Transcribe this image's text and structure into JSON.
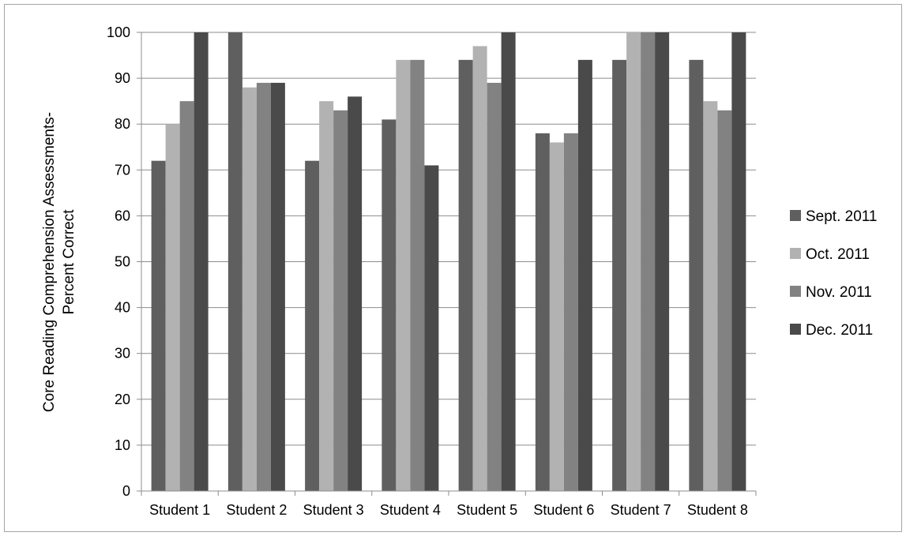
{
  "chart_data": {
    "type": "bar",
    "title": "",
    "xlabel": "",
    "ylabel_lines": [
      "Core Reading Comprehension Assessments-",
      "Percent Correct"
    ],
    "ylim": [
      0,
      100
    ],
    "yticks": [
      0,
      10,
      20,
      30,
      40,
      50,
      60,
      70,
      80,
      90,
      100
    ],
    "grid": "horizontal",
    "legend_position": "right",
    "categories": [
      "Student 1",
      "Student 2",
      "Student 3",
      "Student 4",
      "Student 5",
      "Student 6",
      "Student 7",
      "Student 8"
    ],
    "series": [
      {
        "name": "Sept. 2011",
        "color": "#5f5f5f",
        "values": [
          72,
          100,
          72,
          81,
          94,
          78,
          94,
          94
        ]
      },
      {
        "name": "Oct. 2011",
        "color": "#b2b2b2",
        "values": [
          80,
          88,
          85,
          94,
          97,
          76,
          100,
          85
        ]
      },
      {
        "name": "Nov. 2011",
        "color": "#828282",
        "values": [
          85,
          89,
          83,
          94,
          89,
          78,
          100,
          83
        ]
      },
      {
        "name": "Dec. 2011",
        "color": "#4a4a4a",
        "values": [
          100,
          89,
          86,
          71,
          100,
          94,
          100,
          100
        ]
      }
    ]
  }
}
